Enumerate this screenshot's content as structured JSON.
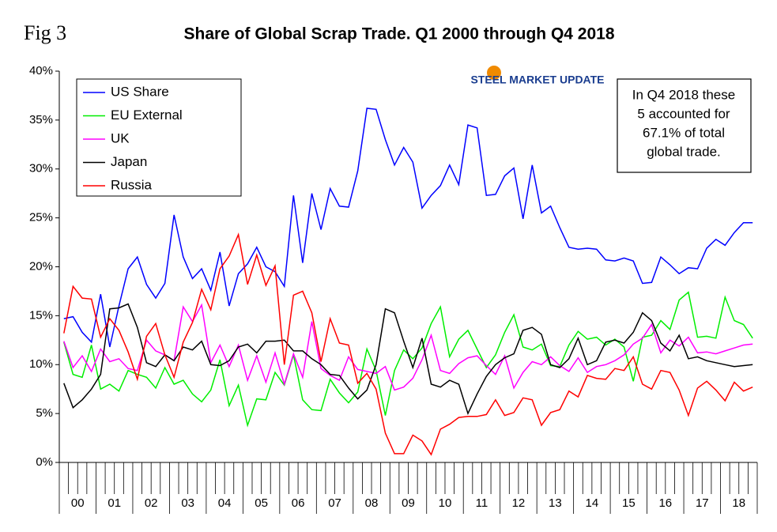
{
  "chart_data": {
    "type": "line",
    "figure_label": "Fig 3",
    "title": "Share of Global Scrap Trade. Q1 2000 through Q4 2018",
    "logo": "STEEL MARKET UPDATE",
    "annotation": [
      "In Q4 2018 these",
      "5 accounted for",
      "67.1% of total",
      "global trade."
    ],
    "categories": [
      "00",
      null,
      null,
      null,
      "01",
      null,
      null,
      null,
      "02",
      null,
      null,
      null,
      "03",
      null,
      null,
      null,
      "04",
      null,
      null,
      null,
      "05",
      null,
      null,
      null,
      "06",
      null,
      null,
      null,
      "07",
      null,
      null,
      null,
      "08",
      null,
      null,
      null,
      "09",
      null,
      null,
      null,
      "10",
      null,
      null,
      null,
      "11",
      null,
      null,
      null,
      "12",
      null,
      null,
      null,
      "13",
      null,
      null,
      null,
      "14",
      null,
      null,
      null,
      "15",
      null,
      null,
      null,
      "16",
      null,
      null,
      null,
      "17",
      null,
      null,
      null,
      "18",
      null,
      null,
      null
    ],
    "ylim": [
      0,
      40
    ],
    "yticks": [
      {
        "value": 0,
        "label": "0%"
      },
      {
        "value": 5,
        "label": "5%"
      },
      {
        "value": 10,
        "label": "10%"
      },
      {
        "value": 15,
        "label": "15%"
      },
      {
        "value": 20,
        "label": "20%"
      },
      {
        "value": 25,
        "label": "25%"
      },
      {
        "value": 30,
        "label": "30%"
      },
      {
        "value": 35,
        "label": "35%"
      },
      {
        "value": 40,
        "label": "40%"
      }
    ],
    "series": [
      {
        "name": "US  Share",
        "color": "#0000ff",
        "values": [
          14.7,
          14.9,
          13.3,
          12.3,
          17.2,
          11.8,
          16.0,
          19.8,
          21.0,
          18.2,
          16.8,
          18.3,
          25.3,
          21.0,
          18.8,
          19.8,
          17.6,
          21.5,
          16.0,
          19.3,
          20.3,
          22.0,
          20.0,
          19.5,
          18.0,
          27.3,
          20.4,
          27.5,
          23.8,
          28.0,
          26.2,
          26.1,
          29.8,
          36.2,
          36.1,
          33.0,
          30.4,
          32.2,
          30.7,
          26.0,
          27.3,
          28.3,
          30.4,
          28.4,
          34.5,
          34.2,
          27.3,
          27.4,
          29.3,
          30.1,
          24.9,
          30.4,
          25.5,
          26.2,
          24.0,
          22.0,
          21.8,
          21.9,
          21.8,
          20.7,
          20.6,
          20.9,
          20.6,
          18.3,
          18.4,
          21.0,
          20.2,
          19.3,
          19.9,
          19.8,
          21.9,
          22.8,
          22.2,
          23.5,
          24.5,
          24.5
        ]
      },
      {
        "name": "EU External",
        "color": "#00ee00",
        "values": [
          12.3,
          9.0,
          8.7,
          12.0,
          7.5,
          8.0,
          7.3,
          9.4,
          9.0,
          8.7,
          7.6,
          9.7,
          8.0,
          8.4,
          7.0,
          6.2,
          7.4,
          10.5,
          5.8,
          7.9,
          3.8,
          6.5,
          6.4,
          9.2,
          7.9,
          11.0,
          6.4,
          5.4,
          5.3,
          8.5,
          7.1,
          6.1,
          7.2,
          11.6,
          9.4,
          4.8,
          9.4,
          11.5,
          10.6,
          11.7,
          14.2,
          15.9,
          10.8,
          12.6,
          13.5,
          11.6,
          9.7,
          11.0,
          13.3,
          15.1,
          11.8,
          11.5,
          12.1,
          9.9,
          9.8,
          12.0,
          13.4,
          12.6,
          12.8,
          12.0,
          12.6,
          11.8,
          8.3,
          12.8,
          13.0,
          14.5,
          13.6,
          16.6,
          17.4,
          12.8,
          12.9,
          12.7,
          16.9,
          14.5,
          14.1,
          12.7
        ]
      },
      {
        "name": "UK",
        "color": "#ff00ff",
        "values": [
          12.4,
          9.7,
          10.9,
          9.3,
          11.6,
          10.3,
          10.6,
          9.6,
          9.4,
          12.5,
          11.4,
          11.0,
          10.4,
          15.9,
          14.4,
          16.1,
          10.2,
          12.0,
          9.8,
          12.0,
          8.4,
          10.9,
          8.2,
          11.2,
          8.0,
          11.1,
          8.7,
          14.4,
          9.6,
          8.9,
          8.4,
          10.8,
          9.5,
          9.3,
          9.1,
          9.8,
          7.4,
          7.7,
          8.6,
          10.5,
          13.0,
          9.4,
          9.1,
          10.1,
          10.7,
          10.9,
          9.9,
          9.0,
          10.9,
          7.6,
          9.2,
          10.3,
          10.0,
          10.8,
          9.9,
          9.3,
          10.7,
          9.2,
          9.8,
          10.0,
          10.4,
          11.0,
          12.1,
          12.7,
          14.1,
          11.2,
          12.5,
          11.9,
          12.8,
          11.2,
          11.3,
          11.1,
          11.4,
          11.7,
          12.0,
          12.1
        ]
      },
      {
        "name": "Japan",
        "color": "#000000",
        "values": [
          8.1,
          5.6,
          6.4,
          7.5,
          9.0,
          15.7,
          15.8,
          16.2,
          13.8,
          10.2,
          9.8,
          11.0,
          10.4,
          11.8,
          11.5,
          12.4,
          10.0,
          9.9,
          10.4,
          11.8,
          12.1,
          11.2,
          12.4,
          12.4,
          12.5,
          11.4,
          11.4,
          10.6,
          10.0,
          9.0,
          8.9,
          7.6,
          6.5,
          7.4,
          10.0,
          15.7,
          15.3,
          12.4,
          9.7,
          12.7,
          8.0,
          7.7,
          8.4,
          8.0,
          5.0,
          7.0,
          8.8,
          10.0,
          10.7,
          11.1,
          13.5,
          13.8,
          13.1,
          10.0,
          9.7,
          10.6,
          12.7,
          10.0,
          10.4,
          12.3,
          12.5,
          12.2,
          13.3,
          15.3,
          14.5,
          12.2,
          11.4,
          13.0,
          10.6,
          10.8,
          10.4,
          10.2,
          10.0,
          9.8,
          9.9,
          10.0
        ]
      },
      {
        "name": "Russia",
        "color": "#ff0000",
        "values": [
          13.2,
          18.0,
          16.8,
          16.7,
          12.8,
          14.7,
          13.5,
          11.3,
          8.5,
          12.9,
          14.2,
          11.0,
          8.7,
          12.3,
          14.3,
          17.7,
          15.6,
          19.8,
          21.1,
          23.3,
          18.2,
          21.2,
          18.1,
          20.1,
          10.0,
          17.1,
          17.5,
          15.3,
          10.3,
          14.7,
          12.2,
          12.0,
          8.1,
          9.1,
          7.5,
          3.0,
          0.9,
          0.9,
          2.8,
          2.2,
          0.8,
          3.4,
          3.9,
          4.6,
          4.7,
          4.7,
          4.9,
          6.4,
          4.8,
          5.1,
          6.6,
          6.4,
          3.8,
          5.1,
          5.4,
          7.3,
          6.7,
          8.9,
          8.6,
          8.5,
          9.6,
          9.4,
          10.8,
          8.0,
          7.5,
          9.4,
          9.2,
          7.4,
          4.8,
          7.6,
          8.3,
          7.4,
          6.3,
          8.2,
          7.3,
          7.7
        ]
      }
    ]
  }
}
